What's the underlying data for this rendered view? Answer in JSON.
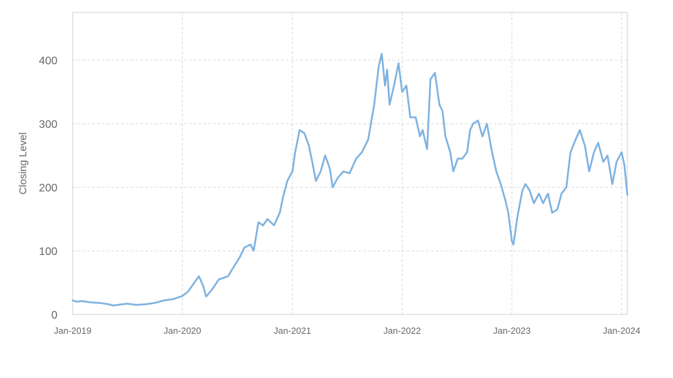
{
  "chart_data": {
    "type": "line",
    "title": "",
    "xlabel": "",
    "ylabel": "Closing Level",
    "ylim": [
      0,
      475
    ],
    "xlim": [
      "2019-01-01",
      "2024-01-20"
    ],
    "grid": true,
    "legend": "none",
    "line_color": "#7eb2e0",
    "y_ticks": [
      0,
      100,
      200,
      300,
      400
    ],
    "x_ticks": [
      {
        "date": "2019-01-01",
        "label": "Jan-2019"
      },
      {
        "date": "2020-01-01",
        "label": "Jan-2020"
      },
      {
        "date": "2021-01-01",
        "label": "Jan-2021"
      },
      {
        "date": "2022-01-01",
        "label": "Jan-2022"
      },
      {
        "date": "2023-01-01",
        "label": "Jan-2023"
      },
      {
        "date": "2024-01-01",
        "label": "Jan-2024"
      }
    ],
    "series": [
      {
        "x": [
          "2019-01-01",
          "2019-01-15",
          "2019-02-01",
          "2019-03-01",
          "2019-04-01",
          "2019-05-01",
          "2019-05-15",
          "2019-06-01",
          "2019-06-15",
          "2019-07-01",
          "2019-08-01",
          "2019-09-01",
          "2019-10-01",
          "2019-11-01",
          "2019-12-01",
          "2020-01-01",
          "2020-01-20",
          "2020-02-10",
          "2020-02-25",
          "2020-03-10",
          "2020-03-20",
          "2020-04-10",
          "2020-05-01",
          "2020-06-01",
          "2020-06-20",
          "2020-07-10",
          "2020-07-25",
          "2020-08-15",
          "2020-08-25",
          "2020-09-10",
          "2020-09-25",
          "2020-10-10",
          "2020-11-01",
          "2020-11-20",
          "2020-12-01",
          "2020-12-15",
          "2021-01-01",
          "2021-01-10",
          "2021-01-25",
          "2021-02-10",
          "2021-02-25",
          "2021-03-08",
          "2021-03-20",
          "2021-04-05",
          "2021-04-20",
          "2021-05-05",
          "2021-05-15",
          "2021-06-01",
          "2021-06-20",
          "2021-07-10",
          "2021-08-01",
          "2021-08-20",
          "2021-09-10",
          "2021-09-30",
          "2021-10-15",
          "2021-10-25",
          "2021-11-05",
          "2021-11-12",
          "2021-11-20",
          "2021-12-05",
          "2021-12-20",
          "2022-01-01",
          "2022-01-15",
          "2022-01-28",
          "2022-02-15",
          "2022-03-01",
          "2022-03-10",
          "2022-03-25",
          "2022-04-05",
          "2022-04-20",
          "2022-05-05",
          "2022-05-15",
          "2022-05-25",
          "2022-06-10",
          "2022-06-20",
          "2022-07-05",
          "2022-07-20",
          "2022-08-05",
          "2022-08-15",
          "2022-08-25",
          "2022-09-10",
          "2022-09-25",
          "2022-10-10",
          "2022-10-25",
          "2022-11-10",
          "2022-11-25",
          "2022-12-10",
          "2022-12-20",
          "2023-01-01",
          "2023-01-06",
          "2023-01-20",
          "2023-02-05",
          "2023-02-15",
          "2023-03-01",
          "2023-03-15",
          "2023-04-01",
          "2023-04-15",
          "2023-05-01",
          "2023-05-15",
          "2023-06-01",
          "2023-06-15",
          "2023-07-01",
          "2023-07-15",
          "2023-08-01",
          "2023-08-15",
          "2023-09-01",
          "2023-09-15",
          "2023-10-01",
          "2023-10-15",
          "2023-11-01",
          "2023-11-15",
          "2023-12-01",
          "2023-12-15",
          "2024-01-01",
          "2024-01-10",
          "2024-01-20"
        ],
        "y": [
          22,
          20,
          21,
          19,
          18,
          16,
          14,
          15,
          16,
          17,
          15,
          16,
          18,
          22,
          24,
          29,
          36,
          50,
          60,
          45,
          28,
          40,
          55,
          60,
          75,
          90,
          105,
          110,
          100,
          145,
          140,
          150,
          140,
          160,
          185,
          210,
          225,
          255,
          290,
          285,
          265,
          240,
          210,
          225,
          250,
          230,
          200,
          215,
          225,
          222,
          245,
          255,
          275,
          330,
          390,
          410,
          360,
          385,
          330,
          360,
          395,
          350,
          360,
          310,
          310,
          280,
          290,
          260,
          370,
          380,
          330,
          320,
          280,
          255,
          225,
          245,
          245,
          255,
          290,
          300,
          305,
          280,
          300,
          260,
          225,
          205,
          180,
          160,
          115,
          110,
          155,
          195,
          205,
          195,
          175,
          190,
          175,
          190,
          160,
          165,
          190,
          200,
          255,
          275,
          290,
          265,
          225,
          255,
          270,
          240,
          250,
          205,
          240,
          255,
          235,
          188
        ]
      }
    ]
  }
}
